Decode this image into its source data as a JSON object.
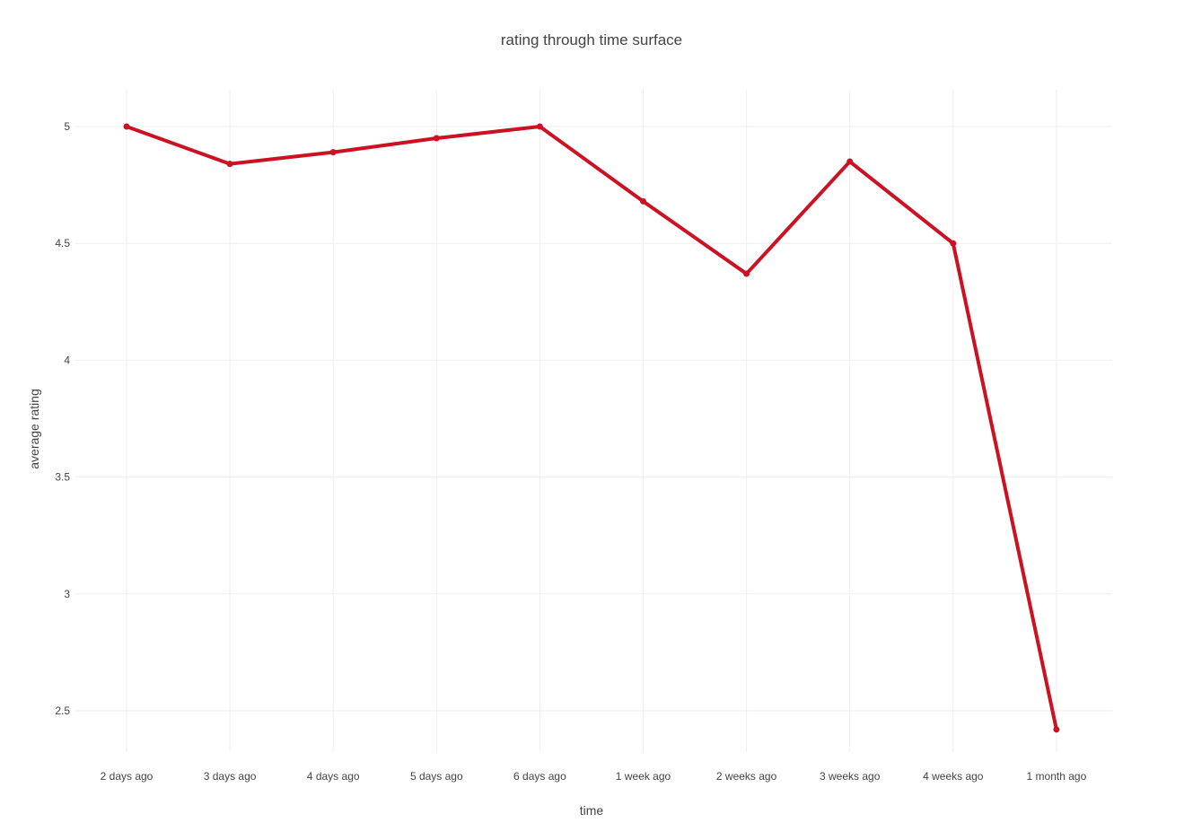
{
  "chart_data": {
    "type": "line",
    "title": "rating through time surface",
    "xlabel": "time",
    "ylabel": "average rating",
    "categories": [
      "2 days ago",
      "3 days ago",
      "4 days ago",
      "5 days ago",
      "6 days ago",
      "1 week ago",
      "2 weeks ago",
      "3 weeks ago",
      "4 weeks ago",
      "1 month ago"
    ],
    "y_ticks": [
      "2.5",
      "3",
      "3.5",
      "4",
      "4.5",
      "5"
    ],
    "ylim": [
      2.33,
      5.16
    ],
    "grid": true,
    "series": [
      {
        "values": [
          5.0,
          4.84,
          4.89,
          4.95,
          5.0,
          4.68,
          4.37,
          4.85,
          4.5,
          2.42
        ],
        "color": "#cc1122"
      }
    ]
  }
}
